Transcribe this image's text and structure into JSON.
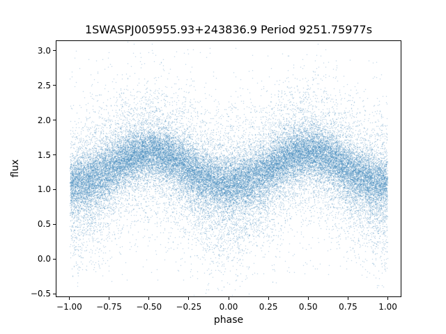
{
  "chart_data": {
    "type": "scatter",
    "title": "1SWASPJ005955.93+243836.9 Period 9251.75977s",
    "xlabel": "phase",
    "ylabel": "flux",
    "xlim": [
      -1.085,
      1.085
    ],
    "ylim": [
      -0.55,
      3.15
    ],
    "x_ticks": [
      -1.0,
      -0.75,
      -0.5,
      -0.25,
      0.0,
      0.25,
      0.5,
      0.75,
      1.0
    ],
    "x_tick_labels": [
      "−1.00",
      "−0.75",
      "−0.50",
      "−0.25",
      "0.00",
      "0.25",
      "0.50",
      "0.75",
      "1.00"
    ],
    "y_ticks": [
      -0.5,
      0.0,
      0.5,
      1.0,
      1.5,
      2.0,
      2.5,
      3.0
    ],
    "y_tick_labels": [
      "−0.5",
      "0.0",
      "0.5",
      "1.0",
      "1.5",
      "2.0",
      "2.5",
      "3.0"
    ],
    "grid": false,
    "legend": null,
    "marker_color": "#3f87bb",
    "marker_alpha": 0.5,
    "n_points": 40000,
    "model": {
      "description": "phase-folded light curve: flux ~ mean - amplitude*cos(2*pi*phase) + noise; minima at phase 0 and +/-1, maxima at +/-0.5",
      "x_range": [
        -1.0,
        1.0
      ],
      "mean_flux": 1.32,
      "amplitude": 0.22,
      "core_sigma": 0.18,
      "tail_sigma": 0.45,
      "tail_fraction": 0.35,
      "eclipse_tail_fraction": 0.18,
      "eclipse_tail_sigma": 0.5,
      "outlier_fraction": 0.012,
      "outlier_range": [
        -0.35,
        3.05
      ],
      "flux_min_at_minima": 1.1,
      "flux_max_at_maxima": 1.55
    }
  }
}
